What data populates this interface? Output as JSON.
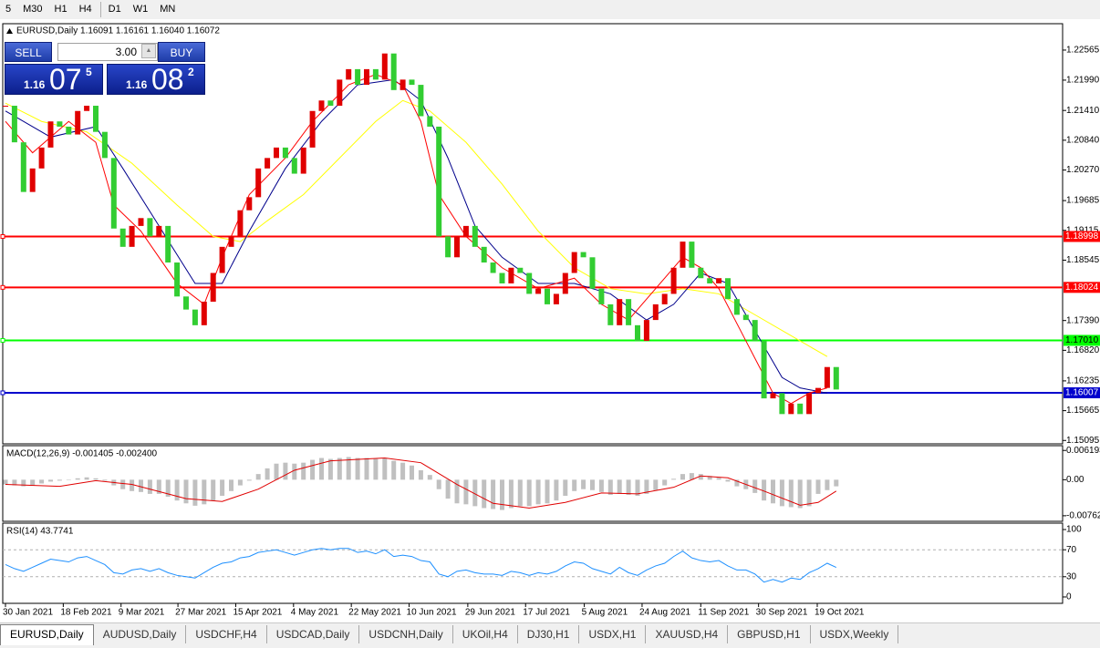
{
  "toolbar": {
    "timeframes": [
      "5",
      "M30",
      "H1",
      "H4",
      "D1",
      "W1",
      "MN"
    ]
  },
  "trade_panel": {
    "sell": "SELL",
    "buy": "BUY",
    "lot": "3.00",
    "bid": {
      "big": "1.16",
      "pips": "07",
      "fraction": "5"
    },
    "ask": {
      "big": "1.16",
      "pips": "08",
      "fraction": "2"
    }
  },
  "tabs": [
    "EURUSD,Daily",
    "AUDUSD,Daily",
    "USDCHF,H4",
    "USDCAD,Daily",
    "USDCNH,Daily",
    "UKOil,H4",
    "DJ30,H1",
    "USDX,H1",
    "XAUUSD,H4",
    "GBPUSD,H1",
    "USDX,Weekly"
  ],
  "chart_data": [
    {
      "type": "candlestick",
      "title": "EURUSD,Daily",
      "ohlc": [
        "1.16091",
        "1.16161",
        "1.16040",
        "1.16072"
      ],
      "up_color": "#e00000",
      "down_color": "#32cd32",
      "close": [
        1.215,
        1.208,
        1.1985,
        1.203,
        1.207,
        1.212,
        1.211,
        1.2095,
        1.214,
        1.215,
        1.21,
        1.205,
        1.1915,
        1.188,
        1.192,
        1.1935,
        1.19,
        1.192,
        1.185,
        1.1785,
        1.176,
        1.173,
        1.1775,
        1.183,
        1.188,
        1.19,
        1.195,
        1.1975,
        1.203,
        1.205,
        1.207,
        1.205,
        1.202,
        1.207,
        1.214,
        1.216,
        1.215,
        1.22,
        1.222,
        1.219,
        1.222,
        1.22,
        1.225,
        1.218,
        1.22,
        1.219,
        1.213,
        1.211,
        1.19,
        1.186,
        1.19,
        1.192,
        1.188,
        1.185,
        1.183,
        1.181,
        1.184,
        1.183,
        1.179,
        1.18,
        1.177,
        1.179,
        1.183,
        1.187,
        1.186,
        1.18,
        1.177,
        1.173,
        1.178,
        1.173,
        1.17,
        1.174,
        1.177,
        1.179,
        1.184,
        1.189,
        1.184,
        1.182,
        1.181,
        1.182,
        1.178,
        1.175,
        1.174,
        1.17,
        1.159,
        1.16,
        1.156,
        1.158,
        1.156,
        1.16,
        1.161,
        1.165,
        1.1607
      ],
      "ma": [
        {
          "color": "#ffff00",
          "x": [
            0,
            4,
            9,
            14,
            19,
            23,
            26,
            29,
            33,
            37,
            41,
            44,
            47,
            51,
            55,
            59,
            63,
            67,
            71,
            75,
            79,
            83,
            87,
            91
          ],
          "values": [
            1.2155,
            1.212,
            1.21,
            1.204,
            1.196,
            1.19,
            1.189,
            1.193,
            1.198,
            1.205,
            1.212,
            1.216,
            1.214,
            1.208,
            1.2,
            1.191,
            1.184,
            1.18,
            1.179,
            1.18,
            1.179,
            1.175,
            1.171,
            1.167
          ]
        },
        {
          "color": "#00008b",
          "x": [
            0,
            5,
            10,
            13,
            17,
            21,
            24,
            27,
            31,
            35,
            39,
            43,
            46,
            49,
            52,
            55,
            59,
            63,
            67,
            71,
            74,
            77,
            80,
            83,
            86,
            88,
            91
          ],
          "values": [
            1.214,
            1.209,
            1.211,
            1.203,
            1.192,
            1.181,
            1.181,
            1.191,
            1.203,
            1.212,
            1.219,
            1.22,
            1.216,
            1.205,
            1.192,
            1.186,
            1.181,
            1.181,
            1.179,
            1.174,
            1.177,
            1.183,
            1.181,
            1.172,
            1.163,
            1.161,
            1.16
          ]
        },
        {
          "color": "#ff0000",
          "x": [
            0,
            3,
            7,
            10,
            12,
            15,
            19,
            22,
            24,
            27,
            31,
            34,
            38,
            41,
            44,
            46,
            48,
            51,
            55,
            59,
            63,
            66,
            69,
            72,
            75,
            77,
            79,
            82,
            85,
            87,
            89,
            91
          ],
          "values": [
            1.212,
            1.206,
            1.212,
            1.208,
            1.196,
            1.191,
            1.181,
            1.177,
            1.186,
            1.198,
            1.205,
            1.212,
            1.219,
            1.221,
            1.219,
            1.212,
            1.198,
            1.19,
            1.184,
            1.18,
            1.182,
            1.177,
            1.174,
            1.18,
            1.186,
            1.184,
            1.18,
            1.17,
            1.16,
            1.158,
            1.16,
            1.161
          ]
        }
      ],
      "levels": [
        {
          "value": 1.18998,
          "label": "1.18998",
          "color": "#ff0000"
        },
        {
          "value": 1.18024,
          "label": "1.18024",
          "color": "#ff0000"
        },
        {
          "value": 1.1701,
          "label": "1.17010",
          "color": "#00ff00"
        },
        {
          "value": 1.16007,
          "label": "1.16007",
          "color": "#0000cd"
        }
      ],
      "ylim": [
        1.1503,
        1.2307
      ],
      "yticks": [
        1.22565,
        {
          "value": 1.2199,
          "label": "1.21990"
        },
        {
          "value": 1.2141,
          "label": "1.21410"
        },
        {
          "value": 1.2084,
          "label": "1.20840"
        },
        {
          "value": 1.2027,
          "label": "1.20270"
        },
        1.19685,
        1.19115,
        1.18545,
        {
          "value": 1.1739,
          "label": "1.17390"
        },
        {
          "value": 1.1682,
          "label": "1.16820"
        },
        1.16235,
        1.15665,
        1.15095
      ],
      "xticks": [
        {
          "value": 0,
          "label": "30 Jan 2021"
        },
        {
          "value": 6.4,
          "label": "18 Feb 2021"
        },
        {
          "value": 12.8,
          "label": "9 Mar 2021"
        },
        {
          "value": 19.1,
          "label": "27 Mar 2021"
        },
        {
          "value": 25.5,
          "label": "15 Apr 2021"
        },
        {
          "value": 31.9,
          "label": "4 May 2021"
        },
        {
          "value": 38.3,
          "label": "22 May 2021"
        },
        {
          "value": 44.7,
          "label": "10 Jun 2021"
        },
        {
          "value": 51.2,
          "label": "29 Jun 2021"
        },
        {
          "value": 57.6,
          "label": "17 Jul 2021"
        },
        {
          "value": 64.1,
          "label": "5 Aug 2021"
        },
        {
          "value": 70.5,
          "label": "24 Aug 2021"
        },
        {
          "value": 77,
          "label": "11 Sep 2021"
        },
        {
          "value": 83.4,
          "label": "30 Sep 2021"
        },
        {
          "value": 89.9,
          "label": "19 Oct 2021"
        }
      ]
    },
    {
      "type": "macd",
      "title": "MACD(12,26,9)",
      "readout": [
        "-0.001405",
        "-0.002400"
      ],
      "histogram_color": "#c0c0c0",
      "signal_color": "#e00000",
      "values": [
        -0.001,
        -0.0012,
        -0.0014,
        -0.0012,
        -0.0008,
        -0.0004,
        -0.0002,
        0,
        0.0003,
        0.0005,
        0.0003,
        -0.0002,
        -0.0012,
        -0.002,
        -0.0024,
        -0.0026,
        -0.003,
        -0.003,
        -0.0036,
        -0.0044,
        -0.005,
        -0.0055,
        -0.0052,
        -0.0044,
        -0.0034,
        -0.0024,
        -0.0012,
        -0.0002,
        0.0012,
        0.0024,
        0.0034,
        0.0036,
        0.0034,
        0.0036,
        0.0042,
        0.0046,
        0.0044,
        0.0046,
        0.0048,
        0.0046,
        0.0046,
        0.0044,
        0.0046,
        0.004,
        0.0036,
        0.003,
        0.002,
        0.001,
        -0.002,
        -0.004,
        -0.005,
        -0.0052,
        -0.0056,
        -0.006,
        -0.0062,
        -0.0064,
        -0.006,
        -0.0056,
        -0.0056,
        -0.0052,
        -0.005,
        -0.0044,
        -0.0034,
        -0.0024,
        -0.002,
        -0.0022,
        -0.0026,
        -0.0032,
        -0.003,
        -0.0032,
        -0.0034,
        -0.003,
        -0.0022,
        -0.0012,
        0.0002,
        0.0012,
        0.0014,
        0.0012,
        0.0008,
        0.0004,
        -0.0004,
        -0.0014,
        -0.002,
        -0.0028,
        -0.0044,
        -0.005,
        -0.0056,
        -0.0058,
        -0.006,
        -0.0056,
        -0.003,
        -0.0022,
        -0.0014
      ],
      "signal": {
        "x": [
          0,
          6,
          10,
          14,
          20,
          24,
          28,
          32,
          36,
          42,
          46,
          50,
          54,
          58,
          62,
          66,
          70,
          74,
          77,
          80,
          84,
          88,
          90,
          92
        ],
        "values": [
          -0.001,
          -0.0014,
          -0.0002,
          -0.001,
          -0.004,
          -0.0046,
          -0.002,
          0.002,
          0.004,
          0.0046,
          0.0036,
          -0.001,
          -0.005,
          -0.006,
          -0.0048,
          -0.0028,
          -0.003,
          -0.0016,
          0.0008,
          0.0004,
          -0.0024,
          -0.0054,
          -0.0048,
          -0.0024
        ]
      },
      "ylim": [
        -0.0088,
        0.0072
      ],
      "yticks": [
        0.006193,
        {
          "value": 0,
          "label": "0.00"
        },
        -0.00762
      ]
    },
    {
      "type": "rsi",
      "title": "RSI(14)",
      "readout": 43.7741,
      "color": "#1e90ff",
      "values": [
        48,
        42,
        38,
        44,
        50,
        56,
        54,
        52,
        58,
        60,
        54,
        48,
        36,
        34,
        40,
        42,
        38,
        42,
        36,
        32,
        30,
        28,
        36,
        44,
        50,
        52,
        58,
        60,
        66,
        68,
        70,
        66,
        62,
        66,
        70,
        72,
        70,
        72,
        72,
        66,
        68,
        64,
        70,
        60,
        62,
        60,
        54,
        52,
        34,
        30,
        38,
        40,
        36,
        34,
        34,
        32,
        38,
        36,
        32,
        36,
        34,
        38,
        46,
        52,
        50,
        42,
        38,
        34,
        44,
        36,
        32,
        40,
        46,
        50,
        60,
        68,
        58,
        54,
        52,
        54,
        46,
        40,
        40,
        34,
        22,
        26,
        22,
        28,
        26,
        36,
        42,
        50,
        43.7741
      ],
      "levels": [
        70,
        30
      ],
      "ylim": [
        -9.5,
        109.5
      ],
      "yticks": [
        100,
        70,
        30,
        0
      ]
    }
  ]
}
